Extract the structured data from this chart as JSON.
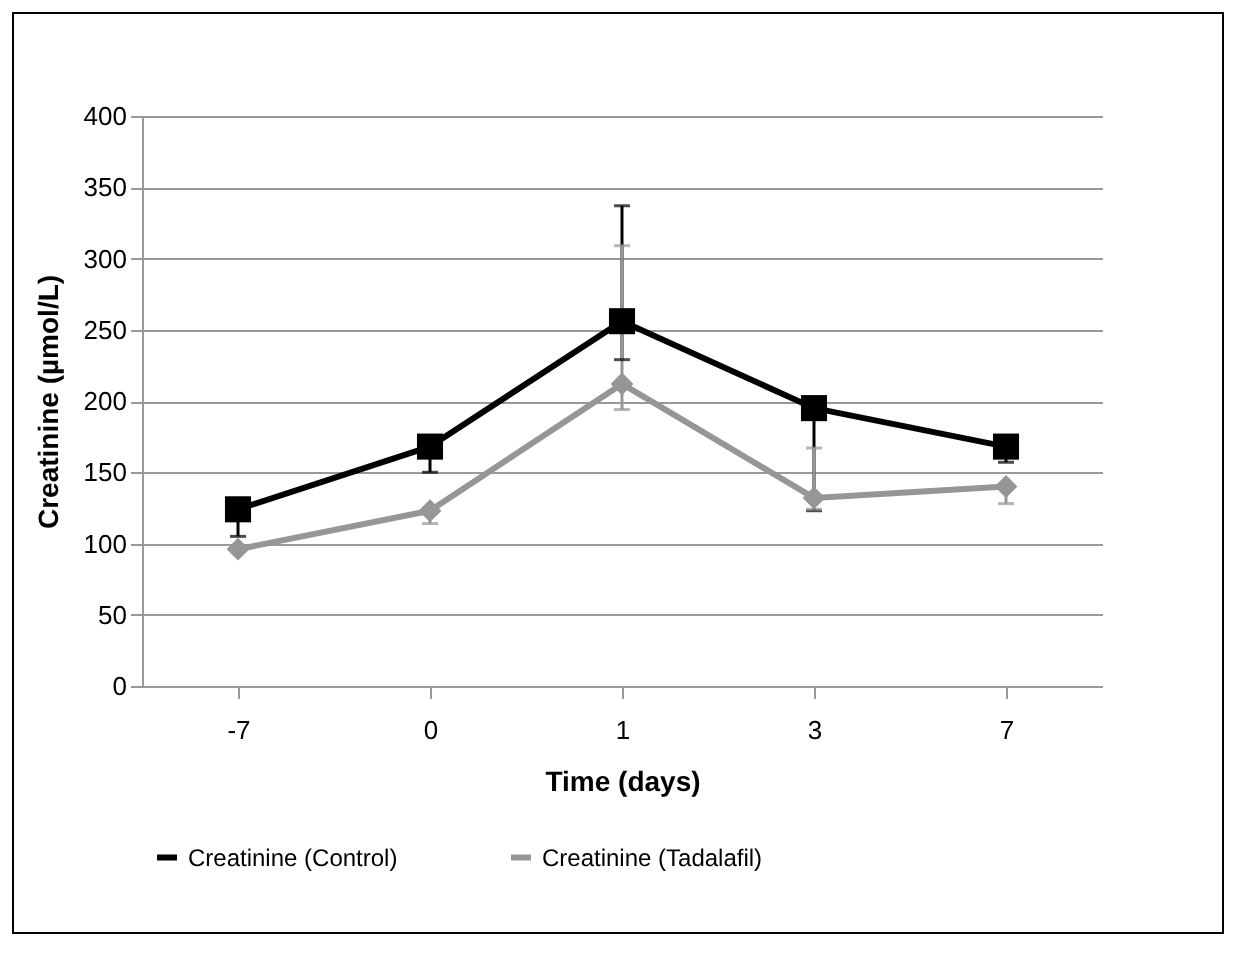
{
  "chart_data": {
    "type": "line",
    "xlabel": "Time (days)",
    "ylabel": "Creatinine (µmol/L)",
    "categories": [
      "-7",
      "0",
      "1",
      "3",
      "7"
    ],
    "series": [
      {
        "name": "Creatinine (Control)",
        "color": "#000000",
        "marker": "square",
        "values": [
          124,
          168,
          256,
          195,
          168
        ],
        "errors": [
          [
            105,
            124
          ],
          [
            150,
            168
          ],
          [
            229,
            337
          ],
          [
            123,
            195
          ],
          [
            157,
            168
          ]
        ]
      },
      {
        "name": "Creatinine (Tadalafil)",
        "color": "#969696",
        "marker": "diamond",
        "values": [
          96,
          123,
          212,
          132,
          140
        ],
        "errors": [
          null,
          [
            114,
            123
          ],
          [
            194,
            309
          ],
          [
            124,
            167
          ],
          [
            128,
            140
          ]
        ]
      }
    ],
    "ylim": [
      0,
      400
    ],
    "yticks": [
      0,
      50,
      100,
      150,
      200,
      250,
      300,
      350,
      400
    ],
    "grid": "y",
    "legend": "bottom"
  }
}
